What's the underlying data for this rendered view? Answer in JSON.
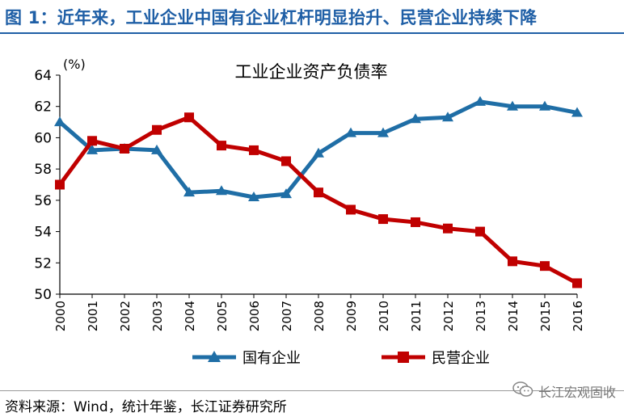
{
  "header": {
    "title": "图 1：近年来，工业企业中国有企业杠杆明显抬升、民营企业持续下降"
  },
  "chart_data": {
    "type": "line",
    "title": "工业企业资产负债率",
    "ylabel": "(%)",
    "xlabel": "",
    "x": [
      "2000",
      "2001",
      "2002",
      "2003",
      "2004",
      "2005",
      "2006",
      "2007",
      "2008",
      "2009",
      "2010",
      "2011",
      "2012",
      "2013",
      "2014",
      "2015",
      "2016"
    ],
    "yticks": [
      "64",
      "62",
      "60",
      "58",
      "56",
      "54",
      "52",
      "50"
    ],
    "ylim": [
      50,
      64
    ],
    "grid": false,
    "legend_position": "bottom",
    "series": [
      {
        "name": "国有企业",
        "color": "#1f6ea6",
        "marker": "triangle",
        "values": [
          61.0,
          59.2,
          59.3,
          59.2,
          56.5,
          56.6,
          56.2,
          56.4,
          59.0,
          60.3,
          60.3,
          61.2,
          61.3,
          62.3,
          62.0,
          62.0,
          61.6
        ]
      },
      {
        "name": "民营企业",
        "color": "#c00000",
        "marker": "square",
        "values": [
          57.0,
          59.8,
          59.3,
          60.5,
          61.3,
          59.5,
          59.2,
          58.5,
          56.5,
          55.4,
          54.8,
          54.6,
          54.2,
          54.0,
          52.1,
          51.8,
          50.7
        ]
      }
    ]
  },
  "footer": {
    "source": "资料来源：Wind，统计年鉴，长江证券研究所",
    "watermark_text": "长江宏观固收",
    "watermark_icon": "wechat-icon"
  }
}
